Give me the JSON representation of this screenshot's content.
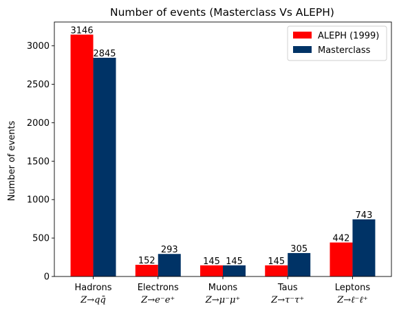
{
  "chart_data": {
    "type": "bar",
    "title": "Number of events (Masterclass Vs ALEPH)",
    "xlabel": "",
    "ylabel": "Number of events",
    "ylim": [
      0,
      3310
    ],
    "yticks": [
      0,
      500,
      1000,
      1500,
      2000,
      2500,
      3000
    ],
    "categories": [
      "Hadrons",
      "Electrons",
      "Muons",
      "Taus",
      "Leptons"
    ],
    "category_subtitles": [
      "Z→qq̄",
      "Z→e⁻e⁺",
      "Z→μ⁻μ⁺",
      "Z→τ⁻τ⁺",
      "Z→ℓ⁻ℓ⁺"
    ],
    "series": [
      {
        "name": "ALEPH (1999)",
        "color": "#ff0000",
        "values": [
          3146,
          152,
          145,
          145,
          442
        ]
      },
      {
        "name": "Masterclass",
        "color": "#003366",
        "values": [
          2845,
          293,
          145,
          305,
          743
        ]
      }
    ],
    "data_labels": true,
    "legend_position": "top-right",
    "grid": false
  }
}
